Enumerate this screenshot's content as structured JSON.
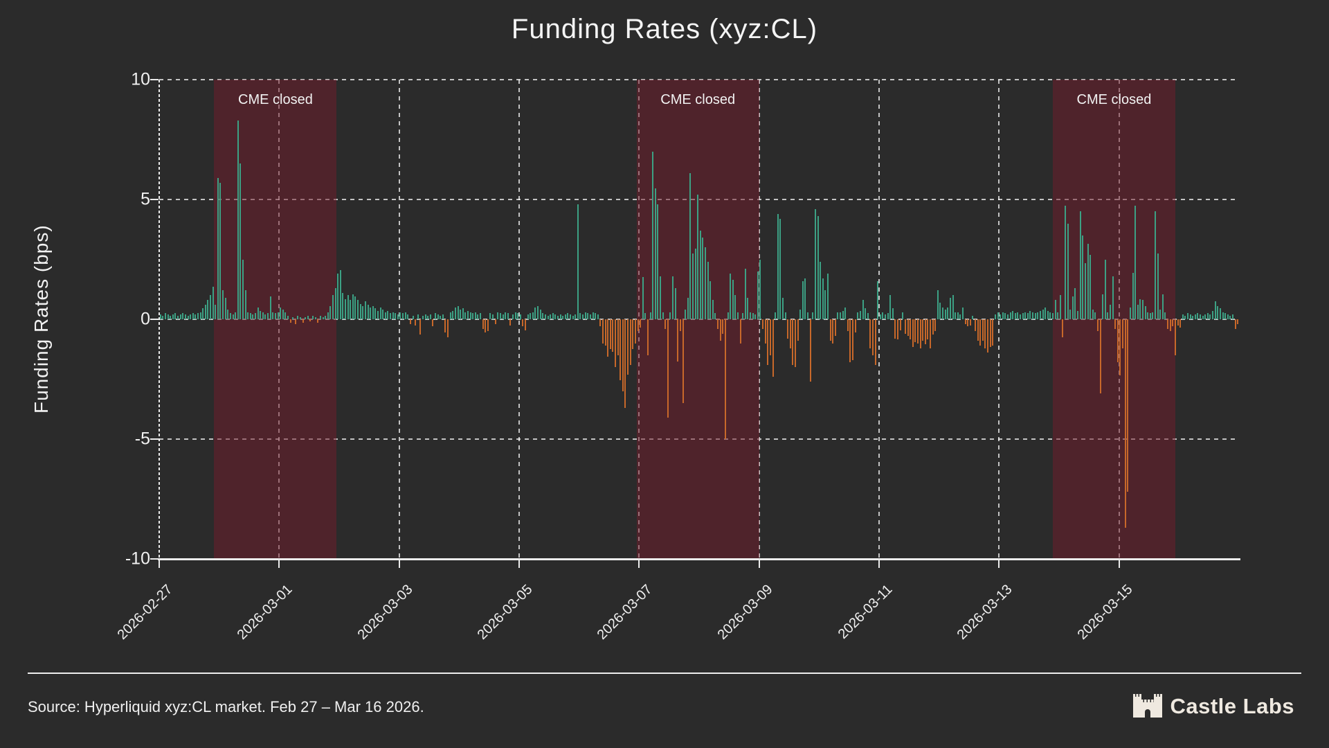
{
  "title": "Funding Rates (xyz:CL)",
  "y_axis": {
    "title": "Funding Rates (bps)",
    "tick_labels": [
      "10",
      "5",
      "0",
      "-5",
      "-10"
    ],
    "tick_values": [
      10,
      5,
      0,
      -5,
      -10
    ],
    "min": -10,
    "max": 10
  },
  "x_axis": {
    "tick_labels": [
      "2026-02-27",
      "2026-03-01",
      "2026-03-03",
      "2026-03-05",
      "2026-03-07",
      "2026-03-09",
      "2026-03-11",
      "2026-03-13",
      "2026-03-15"
    ],
    "tick_positions_hours": [
      0,
      48,
      96,
      144,
      192,
      240,
      288,
      336,
      384
    ],
    "rotation_deg": 45
  },
  "regions": [
    {
      "label": "CME closed",
      "start_hour": 22,
      "end_hour": 71
    },
    {
      "label": "CME closed",
      "start_hour": 191,
      "end_hour": 240
    },
    {
      "label": "CME closed",
      "start_hour": 357.5,
      "end_hour": 406.5
    }
  ],
  "footer": {
    "source": "Source: Hyperliquid xyz:CL market. Feb 27 – Mar 16 2026.",
    "brand": "Castle Labs",
    "brand_icon": "castle-icon"
  },
  "colors": {
    "background": "#2b2b2b",
    "positive": "#3ca184",
    "negative": "#c8682a",
    "region_fill": "rgba(115,28,44,0.5)",
    "grid": "rgba(255,255,255,0.72)",
    "axis": "#ececec",
    "text": "#f0f0f0",
    "brand_text": "#efe9e0"
  },
  "chart_data": {
    "type": "bar",
    "title": "Funding Rates (xyz:CL)",
    "xlabel": "",
    "ylabel": "Funding Rates (bps)",
    "ylim": [
      -10,
      10
    ],
    "grid": true,
    "legend": false,
    "x_start": "2026-02-27 00:00",
    "x_end": "2026-03-17 00:00",
    "x_interval_hours": 1,
    "series_name": "funding_rate_bps",
    "annotations": [
      "CME closed (Feb 27 22:00 – Mar 1 23:00)",
      "CME closed (Mar 6 23:00 – Mar 9 00:00)",
      "CME closed (Mar 13 21:30 – Mar 15 22:30)"
    ],
    "values": [
      0.2,
      0.15,
      0.25,
      0.2,
      0.15,
      0.2,
      0.25,
      0.15,
      0.2,
      0.25,
      0.2,
      0.15,
      0.2,
      0.25,
      0.2,
      0.25,
      0.3,
      0.45,
      0.6,
      0.8,
      1.0,
      1.35,
      0.6,
      5.9,
      5.7,
      1.2,
      0.9,
      0.4,
      0.25,
      0.2,
      0.3,
      8.3,
      6.5,
      2.5,
      1.2,
      0.3,
      0.25,
      0.2,
      0.25,
      0.5,
      0.35,
      0.3,
      0.2,
      0.25,
      0.95,
      0.3,
      0.25,
      0.3,
      0.5,
      0.4,
      0.3,
      0.15,
      -0.15,
      0.1,
      -0.2,
      0.15,
      0.1,
      -0.15,
      0.1,
      0.15,
      -0.1,
      0.15,
      0.1,
      -0.15,
      0.15,
      0.1,
      0.15,
      0.3,
      0.55,
      1.0,
      1.3,
      1.9,
      2.05,
      1.1,
      0.85,
      1.0,
      0.8,
      1.05,
      0.95,
      0.8,
      0.65,
      0.55,
      0.75,
      0.6,
      0.5,
      0.55,
      0.45,
      0.35,
      0.5,
      0.4,
      0.3,
      0.35,
      0.25,
      0.3,
      0.25,
      0.2,
      0.3,
      0.25,
      0.3,
      0.2,
      -0.2,
      0.15,
      -0.25,
      0.2,
      -0.65,
      0.15,
      0.2,
      0.15,
      0.2,
      -0.3,
      0.25,
      0.2,
      0.15,
      0.2,
      -0.55,
      -0.75,
      0.3,
      0.35,
      0.5,
      0.55,
      0.4,
      0.45,
      0.3,
      0.35,
      0.3,
      0.25,
      0.3,
      0.2,
      0.25,
      -0.4,
      -0.55,
      -0.5,
      0.25,
      0.2,
      -0.2,
      0.3,
      0.25,
      0.2,
      0.3,
      0.25,
      -0.25,
      0.2,
      0.3,
      0.25,
      0.2,
      -0.3,
      -0.45,
      0.2,
      0.25,
      0.3,
      0.5,
      0.55,
      0.4,
      0.25,
      0.2,
      0.15,
      0.2,
      0.25,
      0.2,
      0.15,
      0.2,
      0.15,
      0.2,
      0.25,
      0.2,
      0.15,
      0.2,
      4.8,
      0.25,
      0.2,
      0.3,
      0.25,
      0.2,
      0.3,
      0.25,
      0.2,
      -0.3,
      -1.0,
      -1.1,
      -1.55,
      -1.25,
      -1.35,
      -2.0,
      -1.5,
      -2.55,
      -3.0,
      -3.7,
      -2.3,
      -1.9,
      -1.25,
      -1.0,
      -0.5,
      -0.35,
      1.75,
      0.25,
      -1.5,
      0.3,
      7.0,
      5.45,
      4.8,
      1.8,
      0.3,
      -0.4,
      -4.1,
      0.3,
      1.8,
      1.3,
      -1.75,
      -0.5,
      -3.5,
      0.4,
      0.9,
      6.1,
      2.75,
      2.95,
      5.2,
      3.7,
      3.4,
      3.0,
      2.4,
      1.6,
      0.8,
      0.25,
      -0.4,
      -0.9,
      -0.6,
      -5.0,
      0.3,
      1.9,
      1.65,
      1.0,
      0.3,
      -1.0,
      0.25,
      2.1,
      0.9,
      0.3,
      0.25,
      0.2,
      2.0,
      2.5,
      -0.4,
      -1.0,
      -1.9,
      -1.5,
      -2.4,
      0.3,
      4.4,
      4.2,
      0.9,
      0.3,
      -0.8,
      -1.2,
      -1.9,
      -2.0,
      -0.9,
      0.4,
      1.6,
      1.7,
      0.3,
      -2.6,
      0.3,
      4.6,
      4.3,
      2.4,
      1.7,
      1.2,
      1.9,
      -0.9,
      -1.0,
      -0.7,
      0.3,
      0.3,
      0.35,
      0.5,
      -0.5,
      -1.8,
      -1.7,
      -0.55,
      0.3,
      0.35,
      0.8,
      0.45,
      0.25,
      -1.2,
      -1.5,
      -1.9,
      1.6,
      0.2,
      0.3,
      0.2,
      0.25,
      1.0,
      0.45,
      -0.8,
      -0.85,
      -0.45,
      0.3,
      -0.6,
      -0.7,
      -0.85,
      -1.15,
      -0.95,
      -1.0,
      -1.2,
      -0.9,
      -1.05,
      -0.85,
      -1.2,
      -0.65,
      -0.5,
      1.2,
      0.7,
      0.5,
      0.4,
      0.5,
      0.9,
      1.0,
      0.3,
      0.3,
      0.2,
      0.5,
      -0.2,
      -0.3,
      -0.25,
      0.15,
      -0.5,
      -0.9,
      -1.1,
      -0.9,
      -1.2,
      -1.4,
      -1.15,
      -1.1,
      0.2,
      0.3,
      0.2,
      0.3,
      0.25,
      0.2,
      0.3,
      0.35,
      0.25,
      0.3,
      0.2,
      0.25,
      0.3,
      0.25,
      0.35,
      0.3,
      0.25,
      0.3,
      0.35,
      0.4,
      0.5,
      0.35,
      0.3,
      0.25,
      0.8,
      0.3,
      1.0,
      -0.75,
      4.75,
      4.0,
      0.4,
      0.95,
      1.3,
      0.35,
      4.5,
      3.5,
      2.35,
      3.15,
      2.7,
      0.4,
      0.3,
      -0.5,
      -3.1,
      1.05,
      2.5,
      0.3,
      0.6,
      1.8,
      -0.4,
      -1.8,
      -2.35,
      -1.2,
      -8.7,
      -7.2,
      0.5,
      1.95,
      4.75,
      0.6,
      0.85,
      0.8,
      0.55,
      0.3,
      0.25,
      0.3,
      4.5,
      2.75,
      0.4,
      1.05,
      0.3,
      -0.4,
      -0.5,
      -0.3,
      -1.5,
      -0.25,
      -0.35,
      0.2,
      0.15,
      0.25,
      0.2,
      0.15,
      0.2,
      0.25,
      0.2,
      0.15,
      0.2,
      0.25,
      0.2,
      0.35,
      0.75,
      0.55,
      0.45,
      0.3,
      0.25,
      0.2,
      0.15,
      0.2,
      -0.4,
      -0.2
    ]
  }
}
